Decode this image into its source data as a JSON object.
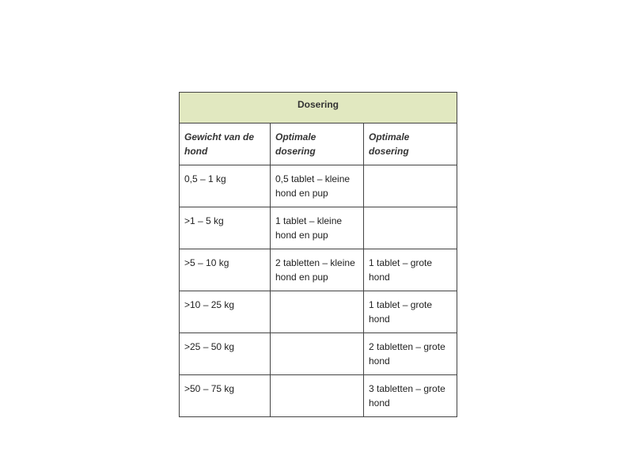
{
  "table": {
    "title": "Dosering",
    "headers": [
      "Gewicht van de hond",
      "Optimale dosering",
      "Optimale dosering"
    ],
    "rows": [
      [
        "0,5 – 1 kg",
        "0,5 tablet – kleine hond en pup",
        ""
      ],
      [
        ">1 – 5 kg",
        "1 tablet – kleine hond en pup",
        ""
      ],
      [
        ">5 – 10 kg",
        "2 tabletten – kleine hond en pup",
        "1 tablet – grote hond"
      ],
      [
        ">10 – 25 kg",
        "",
        "1 tablet – grote hond"
      ],
      [
        ">25 – 50 kg",
        "",
        "2 tabletten – grote hond"
      ],
      [
        ">50 – 75 kg",
        "",
        "3 tabletten – grote hond"
      ]
    ],
    "colors": {
      "header_bg": "#e1e8c0",
      "border": "#444444"
    }
  }
}
